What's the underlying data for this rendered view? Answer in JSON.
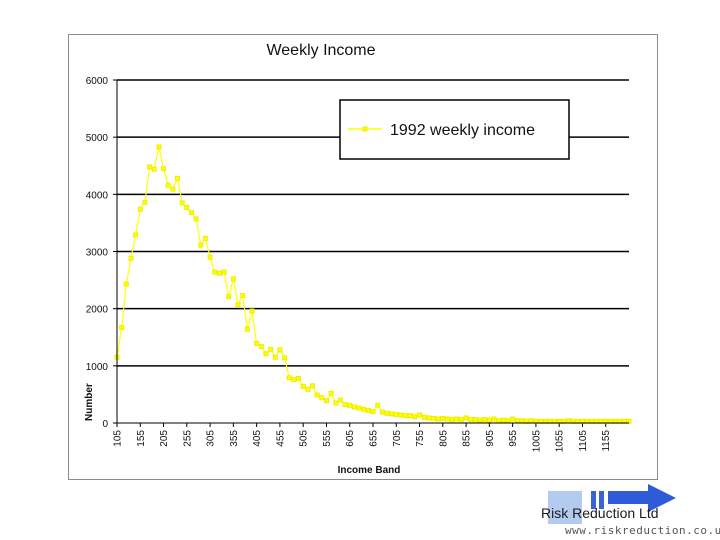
{
  "chart_data": {
    "type": "line",
    "title": "Weekly Income",
    "xlabel": "Income Band",
    "ylabel": "Number",
    "ylim": [
      0,
      6000
    ],
    "yticks": [
      0,
      1000,
      2000,
      3000,
      4000,
      5000,
      6000
    ],
    "xtick_labels": [
      "105",
      "155",
      "205",
      "255",
      "305",
      "355",
      "405",
      "455",
      "505",
      "555",
      "605",
      "655",
      "705",
      "755",
      "805",
      "855",
      "905",
      "955",
      "1005",
      "1055",
      "1105",
      "1155"
    ],
    "grid": "horizontal",
    "legend": "top-right",
    "series": [
      {
        "name": "1992 weekly income",
        "color": "#ffff00",
        "x": [
          105,
          115,
          125,
          135,
          145,
          155,
          165,
          175,
          185,
          195,
          205,
          215,
          225,
          235,
          245,
          255,
          265,
          275,
          285,
          295,
          305,
          315,
          325,
          335,
          345,
          355,
          365,
          375,
          385,
          395,
          405,
          415,
          425,
          435,
          445,
          455,
          465,
          475,
          485,
          495,
          505,
          515,
          525,
          535,
          545,
          555,
          565,
          575,
          585,
          595,
          605,
          615,
          625,
          635,
          645,
          655,
          665,
          675,
          685,
          695,
          705,
          715,
          725,
          735,
          745,
          755,
          765,
          775,
          785,
          795,
          805,
          815,
          825,
          835,
          845,
          855,
          865,
          875,
          885,
          895,
          905,
          915,
          925,
          935,
          945,
          955,
          965,
          975,
          985,
          995,
          1005,
          1015,
          1025,
          1035,
          1045,
          1055,
          1065,
          1075,
          1085,
          1095,
          1105,
          1115,
          1125,
          1135,
          1145,
          1155,
          1165,
          1175,
          1185,
          1195,
          1205
        ],
        "y": [
          1150,
          1670,
          2430,
          2880,
          3290,
          3740,
          3860,
          4480,
          4440,
          4830,
          4450,
          4160,
          4090,
          4280,
          3850,
          3770,
          3680,
          3570,
          3110,
          3230,
          2900,
          2640,
          2620,
          2640,
          2210,
          2520,
          2070,
          2230,
          1640,
          1960,
          1390,
          1340,
          1210,
          1290,
          1150,
          1280,
          1140,
          790,
          760,
          780,
          640,
          590,
          650,
          490,
          440,
          390,
          520,
          350,
          400,
          320,
          310,
          280,
          260,
          240,
          220,
          200,
          310,
          190,
          170,
          160,
          150,
          140,
          130,
          130,
          110,
          140,
          100,
          90,
          80,
          70,
          80,
          70,
          60,
          70,
          60,
          90,
          60,
          60,
          50,
          60,
          50,
          70,
          40,
          50,
          40,
          70,
          40,
          40,
          30,
          40,
          30,
          30,
          30,
          30,
          30,
          30,
          30,
          40,
          30,
          30,
          30,
          30,
          30,
          30,
          30,
          30,
          30,
          30,
          30,
          30,
          30
        ]
      }
    ]
  },
  "footer": {
    "company": "Risk Reduction Ltd",
    "url": "www.riskreduction.co.uk"
  }
}
